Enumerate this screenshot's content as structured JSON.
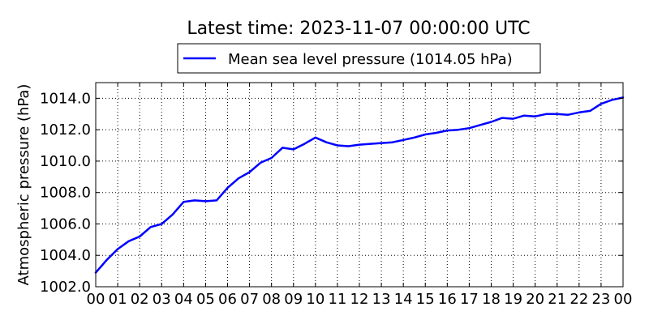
{
  "chart_data": {
    "type": "line",
    "title": "Latest time: 2023-11-07 00:00:00 UTC",
    "xlabel": "",
    "ylabel": "Atmospheric pressure (hPa)",
    "x_ticks": [
      "00",
      "01",
      "02",
      "03",
      "04",
      "05",
      "06",
      "07",
      "08",
      "09",
      "10",
      "11",
      "12",
      "13",
      "14",
      "15",
      "16",
      "17",
      "18",
      "19",
      "20",
      "21",
      "22",
      "23",
      "00"
    ],
    "x_unit": "hour (UTC)",
    "xlim": [
      0,
      24
    ],
    "y_ticks": [
      "1002.0",
      "1004.0",
      "1006.0",
      "1008.0",
      "1010.0",
      "1012.0",
      "1014.0"
    ],
    "ylim": [
      1002.0,
      1015.0
    ],
    "grid": true,
    "legend_position": "top-center",
    "colors": {
      "line": "#0000ff",
      "grid": "#000000",
      "axes": "#000000"
    },
    "series": [
      {
        "name": "Mean sea level pressure (1014.05 hPa)",
        "x": [
          0,
          0.5,
          1,
          1.5,
          2,
          2.5,
          3,
          3.5,
          4,
          4.5,
          5,
          5.5,
          6,
          6.5,
          7,
          7.5,
          8,
          8.5,
          9,
          9.5,
          10,
          10.5,
          11,
          11.5,
          12,
          12.5,
          13,
          13.5,
          14,
          14.5,
          15,
          15.5,
          16,
          16.5,
          17,
          17.5,
          18,
          18.5,
          19,
          19.5,
          20,
          20.5,
          21,
          21.5,
          22,
          22.5,
          23,
          23.5,
          24
        ],
        "values": [
          1002.9,
          1003.7,
          1004.4,
          1004.9,
          1005.2,
          1005.8,
          1006.0,
          1006.6,
          1007.4,
          1007.5,
          1007.45,
          1007.5,
          1008.3,
          1008.9,
          1009.3,
          1009.9,
          1010.2,
          1010.85,
          1010.75,
          1011.1,
          1011.5,
          1011.2,
          1011.0,
          1010.95,
          1011.05,
          1011.1,
          1011.15,
          1011.2,
          1011.35,
          1011.5,
          1011.7,
          1011.8,
          1011.95,
          1012.0,
          1012.1,
          1012.3,
          1012.5,
          1012.75,
          1012.7,
          1012.9,
          1012.85,
          1013.0,
          1013.0,
          1012.95,
          1013.1,
          1013.2,
          1013.65,
          1013.9,
          1014.05
        ]
      }
    ]
  }
}
